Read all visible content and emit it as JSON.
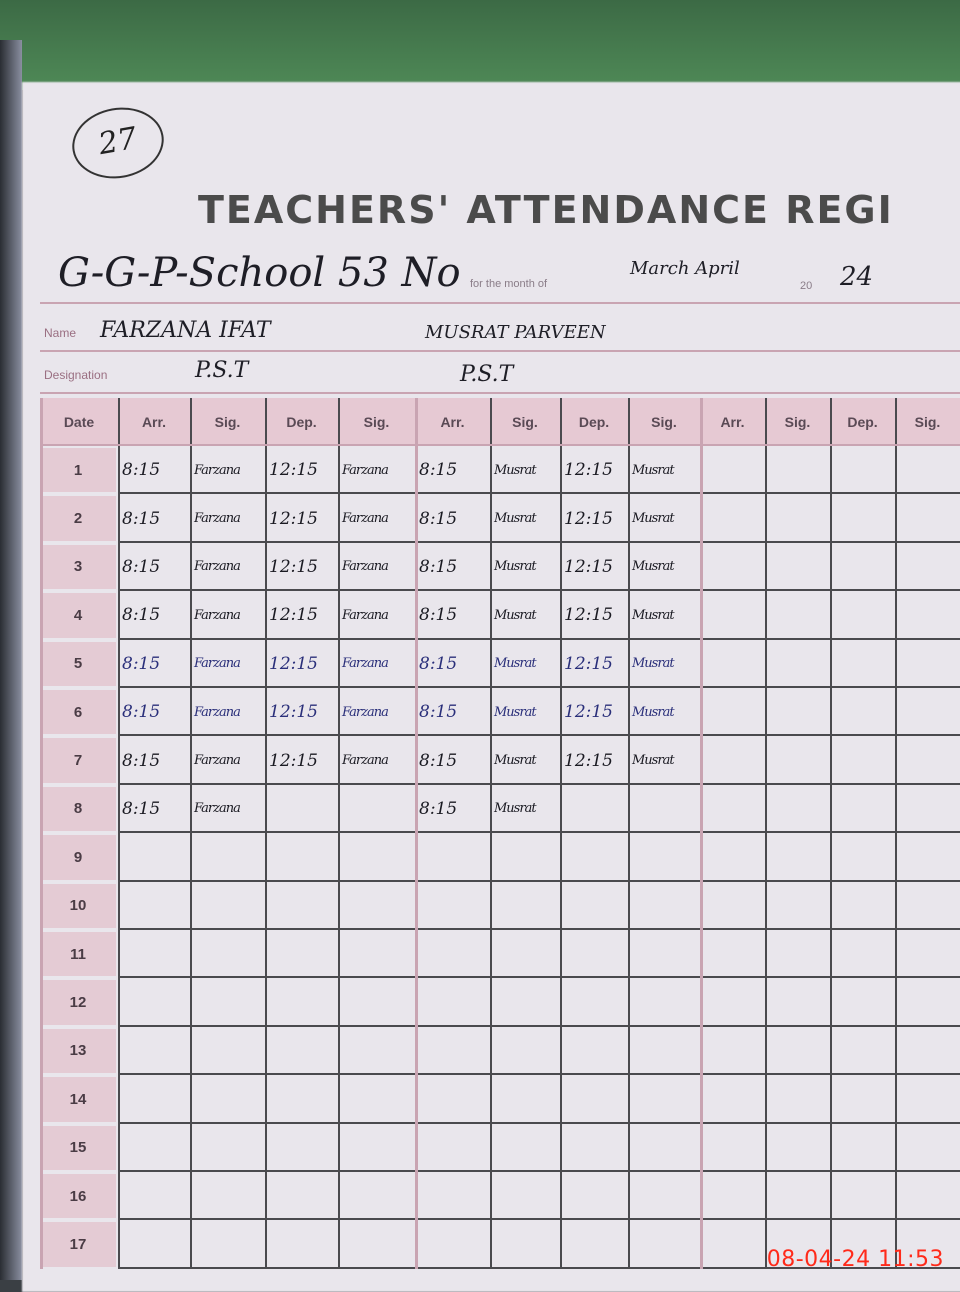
{
  "page_number": "27",
  "title": "TEACHERS' ATTENDANCE REGI",
  "school": "G-G-P-School 53 No",
  "month_label": "for the month of",
  "month_value": "March April",
  "year_label": "20",
  "year_value": "24",
  "labels": {
    "name": "Name",
    "designation": "Designation"
  },
  "teachers": [
    {
      "name": "FARZANA IFAT",
      "designation": "P.S.T"
    },
    {
      "name": "MUSRAT PARVEEN",
      "designation": "P.S.T"
    },
    {
      "name": "",
      "designation": ""
    }
  ],
  "columns": [
    "Date",
    "Arr.",
    "Sig.",
    "Dep.",
    "Sig.",
    "Arr.",
    "Sig.",
    "Dep.",
    "Sig.",
    "Arr.",
    "Sig.",
    "Dep.",
    "Sig."
  ],
  "rows": [
    {
      "date": "1",
      "cells": [
        "8:15",
        "Farzana",
        "12:15",
        "Farzana",
        "8:15",
        "Musrat",
        "12:15",
        "Musrat"
      ]
    },
    {
      "date": "2",
      "cells": [
        "8:15",
        "Farzana",
        "12:15",
        "Farzana",
        "8:15",
        "Musrat",
        "12:15",
        "Musrat"
      ]
    },
    {
      "date": "3",
      "cells": [
        "8:15",
        "Farzana",
        "12:15",
        "Farzana",
        "8:15",
        "Musrat",
        "12:15",
        "Musrat"
      ]
    },
    {
      "date": "4",
      "cells": [
        "8:15",
        "Farzana",
        "12:15",
        "Farzana",
        "8:15",
        "Musrat",
        "12:15",
        "Musrat"
      ]
    },
    {
      "date": "5",
      "cells": [
        "8:15",
        "Farzana",
        "12:15",
        "Farzana",
        "8:15",
        "Musrat",
        "12:15",
        "Musrat"
      ]
    },
    {
      "date": "6",
      "cells": [
        "8:15",
        "Farzana",
        "12:15",
        "Farzana",
        "8:15",
        "Musrat",
        "12:15",
        "Musrat"
      ]
    },
    {
      "date": "7",
      "cells": [
        "8:15",
        "Farzana",
        "12:15",
        "Farzana",
        "8:15",
        "Musrat",
        "12:15",
        "Musrat"
      ]
    },
    {
      "date": "8",
      "cells": [
        "8:15",
        "Farzana",
        "",
        "",
        "8:15",
        "Musrat",
        "",
        ""
      ]
    },
    {
      "date": "9",
      "cells": []
    },
    {
      "date": "10",
      "cells": []
    },
    {
      "date": "11",
      "cells": []
    },
    {
      "date": "12",
      "cells": []
    },
    {
      "date": "13",
      "cells": []
    },
    {
      "date": "14",
      "cells": []
    },
    {
      "date": "15",
      "cells": []
    },
    {
      "date": "16",
      "cells": []
    },
    {
      "date": "17",
      "cells": []
    }
  ],
  "blue_ink_rows": [
    "5",
    "6"
  ],
  "timestamp": "08-04-24  11:53",
  "colors": {
    "timestamp": "#ff2a1a",
    "header_band": "#e6c9d3",
    "rule": "#c9a4b2"
  }
}
